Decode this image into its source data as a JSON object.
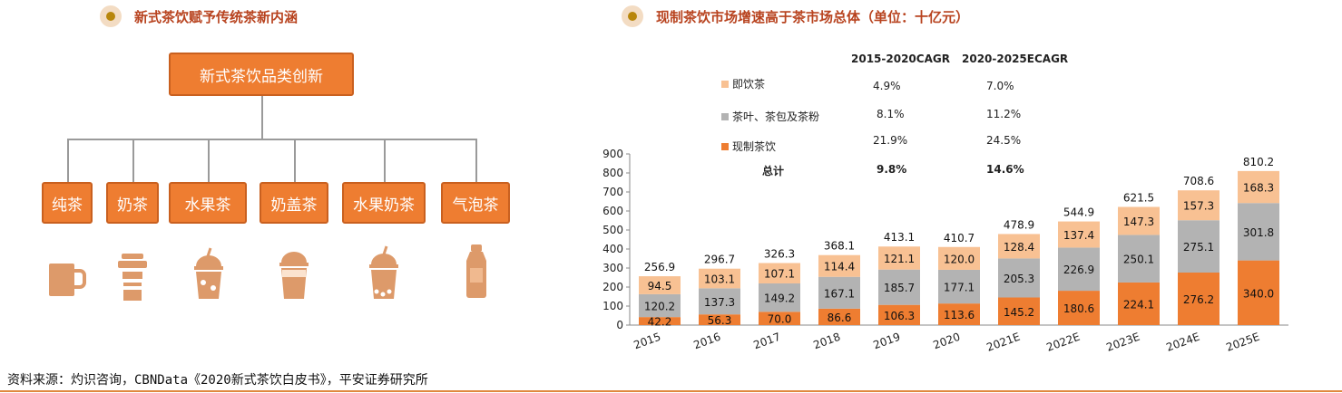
{
  "left_panel": {
    "title": "新式茶饮赋予传统茶新内涵",
    "root_label": "新式茶饮品类创新",
    "categories": [
      "纯茶",
      "奶茶",
      "水果茶",
      "奶盖茶",
      "水果奶茶",
      "气泡茶"
    ],
    "icons": [
      "mug-icon",
      "takeaway-cup-icon",
      "fruit-tea-cup-icon",
      "milk-cap-cup-icon",
      "fruit-milk-tea-cup-icon",
      "sparkling-bottle-icon"
    ]
  },
  "right_panel": {
    "title": "现制茶饮市场增速高于茶市场总体（单位：十亿元）",
    "cagr_headers": [
      "2015-2020CAGR",
      "2020-2025ECAGR"
    ],
    "cagr_rows": [
      {
        "label": "即饮茶",
        "c1": "4.9%",
        "c2": "7.0%",
        "color": "#f8c193"
      },
      {
        "label": "茶叶、茶包及茶粉",
        "c1": "8.1%",
        "c2": "11.2%",
        "color": "#b3b3b3"
      },
      {
        "label": "现制茶饮",
        "c1": "21.9%",
        "c2": "24.5%",
        "color": "#ee7d31"
      },
      {
        "label": "总计",
        "c1": "9.8%",
        "c2": "14.6%",
        "color": ""
      }
    ]
  },
  "chart_data": {
    "type": "bar",
    "stacked": true,
    "categories": [
      "2015",
      "2016",
      "2017",
      "2018",
      "2019",
      "2020",
      "2021E",
      "2022E",
      "2023E",
      "2024E",
      "2025E"
    ],
    "series": [
      {
        "name": "现制茶饮",
        "color": "#ee7d31",
        "values": [
          42.2,
          56.3,
          70.0,
          86.6,
          106.3,
          113.6,
          145.2,
          180.6,
          224.1,
          276.2,
          340.0
        ]
      },
      {
        "name": "茶叶、茶包及茶粉",
        "color": "#b3b3b3",
        "values": [
          120.2,
          137.3,
          149.2,
          167.1,
          185.7,
          177.1,
          205.3,
          226.9,
          250.1,
          275.1,
          301.8
        ]
      },
      {
        "name": "即饮茶",
        "color": "#f8c193",
        "values": [
          94.5,
          103.1,
          107.1,
          114.4,
          121.1,
          120.0,
          128.4,
          137.4,
          147.3,
          157.3,
          168.3
        ]
      }
    ],
    "totals": [
      256.9,
      296.7,
      326.3,
      368.1,
      413.1,
      410.7,
      478.9,
      544.9,
      621.5,
      708.6,
      810.2
    ],
    "ylim": [
      0,
      900
    ],
    "yticks": [
      0,
      100,
      200,
      300,
      400,
      500,
      600,
      700,
      800,
      900
    ]
  },
  "footer": "资料来源：灼识咨询，CBNData《2020新式茶饮白皮书》，平安证券研究所"
}
